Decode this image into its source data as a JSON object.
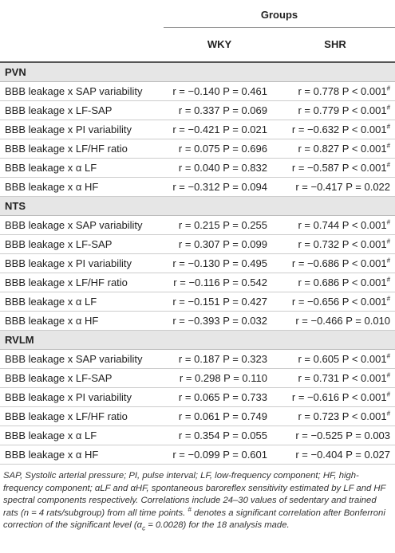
{
  "header": {
    "groups": "Groups",
    "columns": [
      "WKY",
      "SHR"
    ]
  },
  "sections": [
    {
      "name": "PVN",
      "rows": [
        {
          "label": "BBB leakage x SAP variability",
          "cells": [
            {
              "text": "r = −0.140 P = 0.461"
            },
            {
              "text": "r = 0.778 P < 0.001",
              "sup": "#"
            }
          ]
        },
        {
          "label": "BBB leakage x LF-SAP",
          "cells": [
            {
              "text": "r = 0.337 P = 0.069"
            },
            {
              "text": "r = 0.779 P < 0.001",
              "sup": "#"
            }
          ]
        },
        {
          "label": "BBB leakage x PI variability",
          "cells": [
            {
              "text": "r = −0.421 P = 0.021"
            },
            {
              "text": "r = −0.632 P < 0.001",
              "sup": "#"
            }
          ]
        },
        {
          "label": "BBB leakage x LF/HF ratio",
          "cells": [
            {
              "text": "r = 0.075 P = 0.696"
            },
            {
              "text": "r = 0.827 P < 0.001",
              "sup": "#"
            }
          ]
        },
        {
          "label": "BBB leakage x α LF",
          "cells": [
            {
              "text": "r = 0.040 P = 0.832"
            },
            {
              "text": "r = −0.587 P < 0.001",
              "sup": "#"
            }
          ]
        },
        {
          "label": "BBB leakage x α HF",
          "cells": [
            {
              "text": "r = −0.312 P = 0.094"
            },
            {
              "text": "r = −0.417 P = 0.022"
            }
          ]
        }
      ]
    },
    {
      "name": "NTS",
      "rows": [
        {
          "label": "BBB leakage x SAP variability",
          "cells": [
            {
              "text": "r = 0.215 P = 0.255"
            },
            {
              "text": "r = 0.744 P < 0.001",
              "sup": "#"
            }
          ]
        },
        {
          "label": "BBB leakage x LF-SAP",
          "cells": [
            {
              "text": "r = 0.307 P = 0.099"
            },
            {
              "text": "r = 0.732 P < 0.001",
              "sup": "#"
            }
          ]
        },
        {
          "label": "BBB leakage x PI variability",
          "cells": [
            {
              "text": "r = −0.130 P = 0.495"
            },
            {
              "text": "r = −0.686 P < 0.001",
              "sup": "#"
            }
          ]
        },
        {
          "label": "BBB leakage x LF/HF ratio",
          "cells": [
            {
              "text": "r = −0.116 P = 0.542"
            },
            {
              "text": "r = 0.686 P < 0.001",
              "sup": "#"
            }
          ]
        },
        {
          "label": "BBB leakage x α LF",
          "cells": [
            {
              "text": "r = −0.151 P = 0.427"
            },
            {
              "text": "r = −0.656 P < 0.001",
              "sup": "#"
            }
          ]
        },
        {
          "label": "BBB leakage x α HF",
          "cells": [
            {
              "text": "r = −0.393 P = 0.032"
            },
            {
              "text": "r = −0.466 P = 0.010"
            }
          ]
        }
      ]
    },
    {
      "name": "RVLM",
      "rows": [
        {
          "label": "BBB leakage x SAP variability",
          "cells": [
            {
              "text": "r = 0.187 P = 0.323"
            },
            {
              "text": "r = 0.605 P < 0.001",
              "sup": "#"
            }
          ]
        },
        {
          "label": "BBB leakage x LF-SAP",
          "cells": [
            {
              "text": "r = 0.298 P = 0.110"
            },
            {
              "text": "r = 0.731 P < 0.001",
              "sup": "#"
            }
          ]
        },
        {
          "label": "BBB leakage x PI variability",
          "cells": [
            {
              "text": "r = 0.065 P = 0.733"
            },
            {
              "text": "r = −0.616 P < 0.001",
              "sup": "#"
            }
          ]
        },
        {
          "label": "BBB leakage x LF/HF ratio",
          "cells": [
            {
              "text": "r = 0.061 P = 0.749"
            },
            {
              "text": "r = 0.723 P < 0.001",
              "sup": "#"
            }
          ]
        },
        {
          "label": "BBB leakage x α LF",
          "cells": [
            {
              "text": "r = 0.354 P = 0.055"
            },
            {
              "text": "r = −0.525 P = 0.003"
            }
          ]
        },
        {
          "label": "BBB leakage x α HF",
          "cells": [
            {
              "text": "r = −0.099 P = 0.601"
            },
            {
              "text": "r = −0.404 P = 0.027"
            }
          ]
        }
      ]
    }
  ],
  "footnote": [
    "SAP, Systolic arterial pressure; PI, pulse interval; LF, low-frequency component; HF, high-frequency component; αLF and αHF, spontaneous baroreflex sensitivity estimated by LF and HF spectral components respectively. Correlations include 24–30 values of sedentary and trained rats (n = 4 rats/subgroup) from all time points. ",
    "#",
    " denotes a significant correlation after Bonferroni correction of the significant level (α",
    "c",
    " = 0.0028) for the 18 analysis made."
  ]
}
